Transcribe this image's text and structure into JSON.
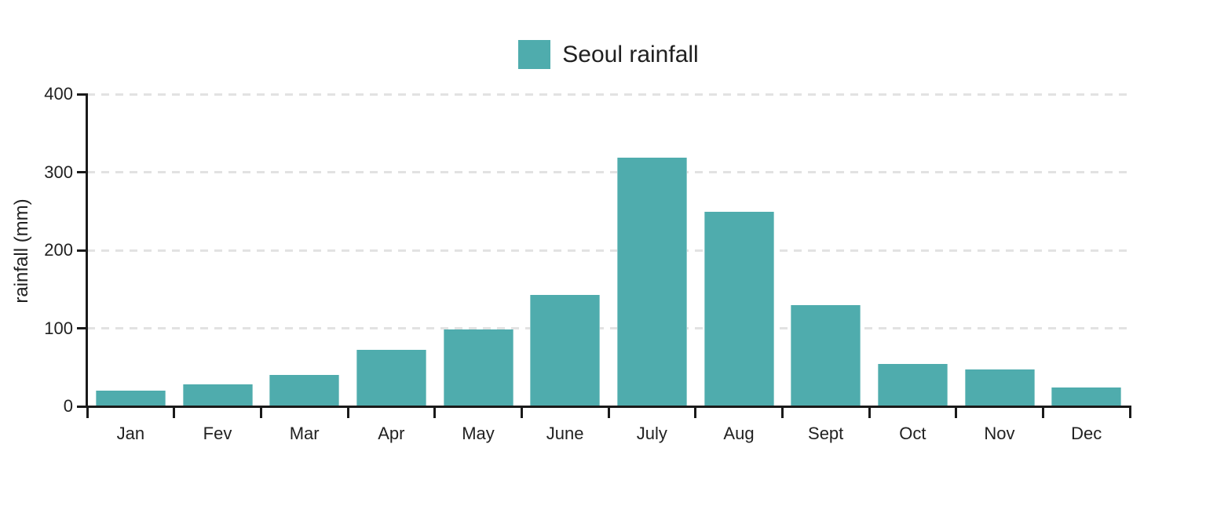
{
  "chart_data": {
    "type": "bar",
    "title": "Seoul rainfall",
    "categories": [
      "Jan",
      "Fev",
      "Mar",
      "Apr",
      "May",
      "June",
      "July",
      "Aug",
      "Sept",
      "Oct",
      "Nov",
      "Dec"
    ],
    "values": [
      20,
      28,
      40,
      72,
      98,
      143,
      319,
      249,
      130,
      54,
      47,
      24
    ],
    "xlabel": "",
    "ylabel": "rainfall (mm)",
    "ylim": [
      0,
      400
    ],
    "y_ticks": [
      0,
      100,
      200,
      300,
      400
    ],
    "grid": "horizontal-dashed",
    "legend_position": "top-center",
    "legend": {
      "label": "Seoul rainfall"
    },
    "colors": {
      "bar": "#4FACAD",
      "axis": "#1a1a1a",
      "grid": "#e2e2e2",
      "text": "#212121",
      "background": "#ffffff"
    }
  }
}
